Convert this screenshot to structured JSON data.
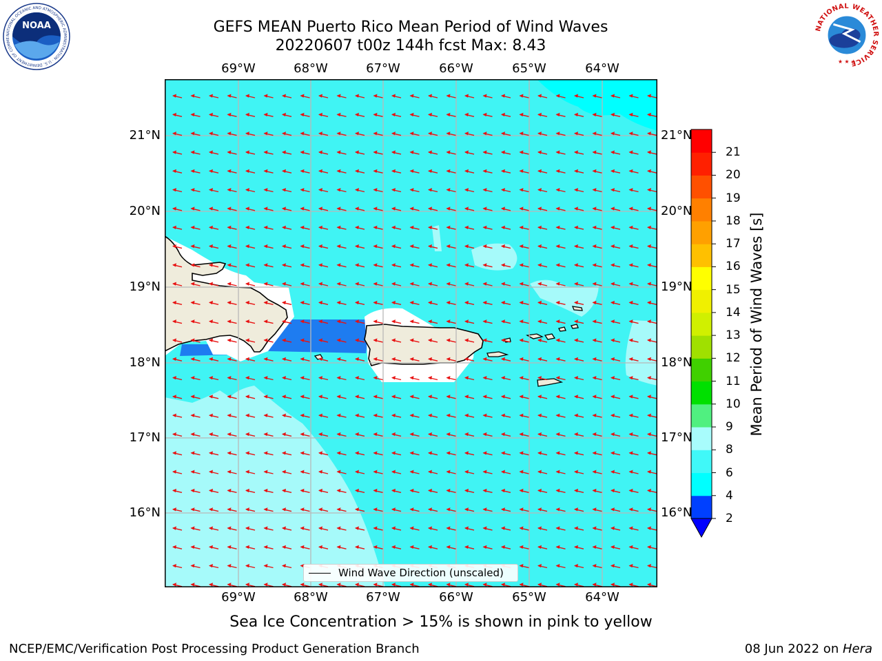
{
  "title_line1": "GEFS MEAN Puerto Rico Mean Period of Wind Waves",
  "title_line2": "20220607 t00z 144h fcst   Max: 8.43",
  "x_ticks": [
    "69°W",
    "68°W",
    "67°W",
    "66°W",
    "65°W",
    "64°W"
  ],
  "y_ticks": [
    "21°N",
    "20°N",
    "19°N",
    "18°N",
    "17°N",
    "16°N"
  ],
  "legend_label": "Wind Wave Direction (unscaled)",
  "colorbar": {
    "label": "Mean Period of Wind Waves [s]",
    "ticks": [
      "2",
      "4",
      "6",
      "8",
      "9",
      "10",
      "11",
      "12",
      "13",
      "14",
      "15",
      "16",
      "17",
      "18",
      "19",
      "20",
      "21"
    ],
    "colors": [
      "#0040ff",
      "#00ffff",
      "#40f8f8",
      "#a8fcfc",
      "#50f080",
      "#00e000",
      "#40d000",
      "#a0e000",
      "#d0f000",
      "#f0f000",
      "#ffff00",
      "#ffc000",
      "#ffa000",
      "#ff8000",
      "#ff5000",
      "#ff2000",
      "#ff0000"
    ],
    "under_color": "#0000ff"
  },
  "map_colors": {
    "period_2_4": "#1e7cf0",
    "period_4_6": "#00ffff",
    "period_6_8": "#40f4f4",
    "period_8_9": "#a6fafa",
    "land": "#efecdc",
    "arrow": "#e81010"
  },
  "note": "Sea Ice Concentration > 15% is shown in pink to yellow",
  "footer_left": "NCEP/EMC/Verification Post Processing Product Generation Branch",
  "footer_right_date": "08 Jun 2022 on ",
  "footer_right_host": "Hera",
  "logos": {
    "left": "NOAA",
    "left_ring_text": "NATIONAL OCEANIC AND ATMOSPHERIC ADMINISTRATION · U.S. DEPARTMENT OF COMMERCE",
    "right_ring_text": "NATIONAL WEATHER SERVICE"
  }
}
